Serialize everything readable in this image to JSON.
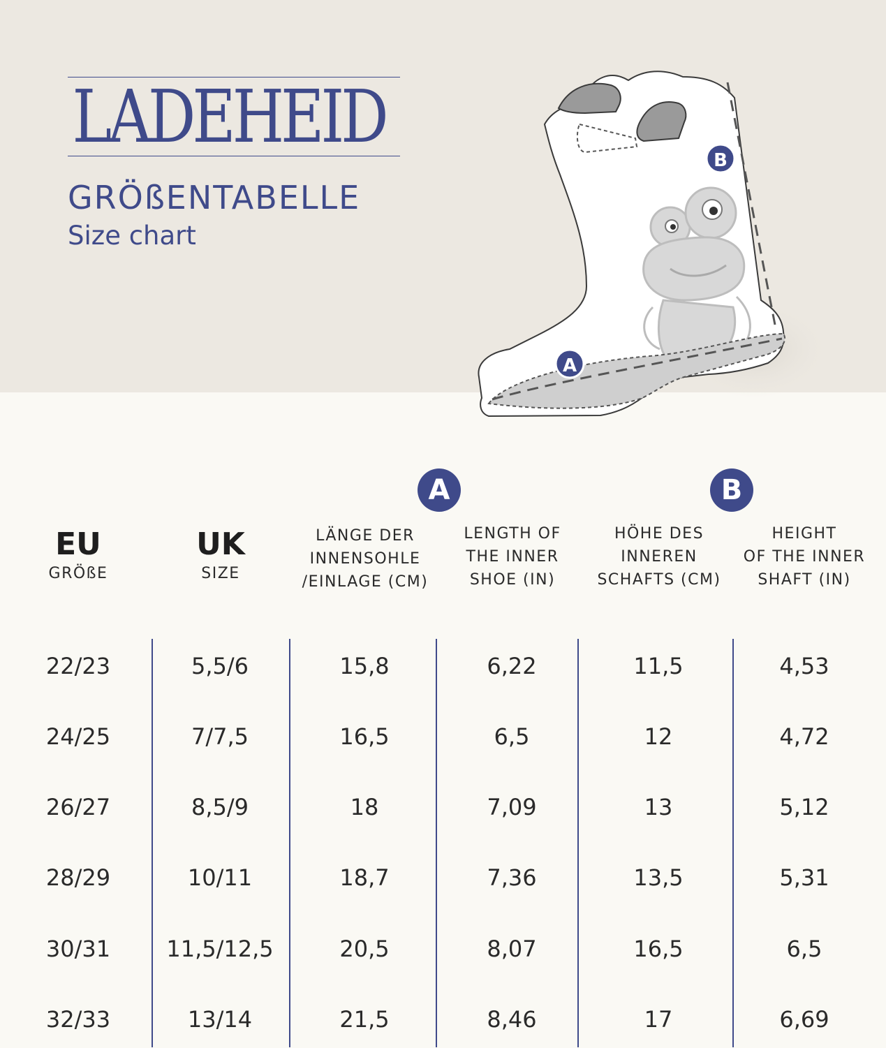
{
  "brand": {
    "name": "LADEHEID"
  },
  "title_de": "GRÖßENTABELLE",
  "title_en": "Size chart",
  "badges": {
    "a": "A",
    "b": "B"
  },
  "columns": [
    {
      "big": "EU",
      "small": "GRÖßE"
    },
    {
      "big": "UK",
      "small": "SIZE"
    },
    {
      "lines": [
        "LÄNGE DER",
        "INNENSOHLE",
        "/EINLAGE (CM)"
      ]
    },
    {
      "lines": [
        "LENGTH OF",
        "THE INNER",
        "SHOE (IN)"
      ]
    },
    {
      "lines": [
        "HÖHE DES",
        "INNEREN",
        "SCHAFTS (CM)"
      ]
    },
    {
      "lines": [
        "HEIGHT",
        "OF THE INNER",
        "SHAFT (IN)"
      ]
    }
  ],
  "rows": [
    [
      "22/23",
      "5,5/6",
      "15,8",
      "6,22",
      "11,5",
      "4,53"
    ],
    [
      "24/25",
      "7/7,5",
      "16,5",
      "6,5",
      "12",
      "4,72"
    ],
    [
      "26/27",
      "8,5/9",
      "18",
      "7,09",
      "13",
      "5,12"
    ],
    [
      "28/29",
      "10/11",
      "18,7",
      "7,36",
      "13,5",
      "5,31"
    ],
    [
      "30/31",
      "11,5/12,5",
      "20,5",
      "8,07",
      "16,5",
      "6,5"
    ],
    [
      "32/33",
      "13/14",
      "21,5",
      "8,46",
      "17",
      "6,69"
    ]
  ],
  "colors": {
    "accent": "#3f4a8a",
    "band": "#ece8e1",
    "page": "#faf9f4"
  }
}
